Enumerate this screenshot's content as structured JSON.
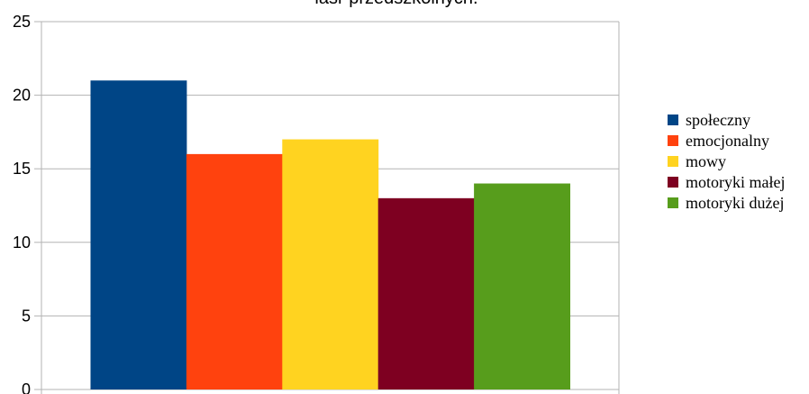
{
  "chart_data": {
    "type": "bar",
    "title": "lasr przedszkolnych.",
    "xlabel": "",
    "ylabel": "",
    "ylim": [
      0,
      25
    ],
    "yticks": [
      0,
      5,
      10,
      15,
      20,
      25
    ],
    "grid": true,
    "legend_position": "right",
    "series": [
      {
        "name": "społeczny",
        "values": [
          21
        ],
        "color": "#004586"
      },
      {
        "name": " emocjonalny",
        "values": [
          16
        ],
        "color": "#ff420e"
      },
      {
        "name": "mowy",
        "values": [
          17
        ],
        "color": "#ffd320"
      },
      {
        "name": "motoryki małej",
        "values": [
          13
        ],
        "color": "#7e0021"
      },
      {
        "name": "motoryki dużej",
        "values": [
          14
        ],
        "color": "#579d1c"
      }
    ]
  }
}
